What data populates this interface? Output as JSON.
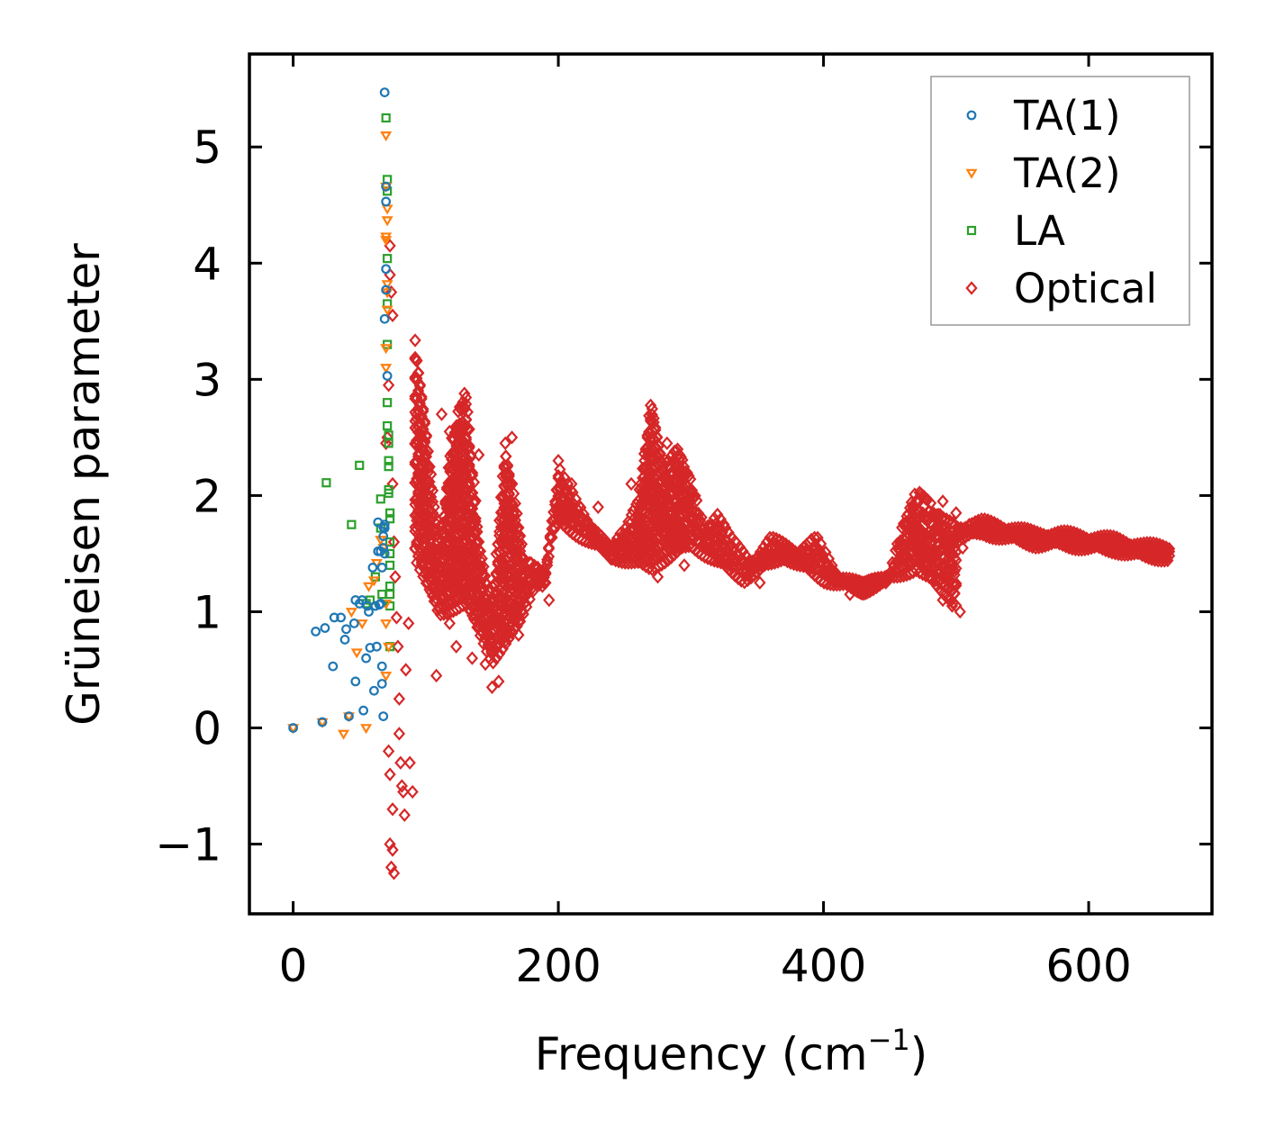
{
  "chart_data": {
    "type": "scatter",
    "xlabel": "Frequency (cm",
    "xlabel_sup": "−1",
    "xlabel_close": ")",
    "ylabel": "Grüneisen parameter",
    "xlim": [
      -33,
      693
    ],
    "ylim": [
      -1.6,
      5.8
    ],
    "xticks": [
      {
        "value": 0,
        "label": "0"
      },
      {
        "value": 200,
        "label": "200"
      },
      {
        "value": 400,
        "label": "400"
      },
      {
        "value": 600,
        "label": "600"
      }
    ],
    "yticks": [
      {
        "value": -1,
        "label": "−1"
      },
      {
        "value": 0,
        "label": "0"
      },
      {
        "value": 1,
        "label": "1"
      },
      {
        "value": 2,
        "label": "2"
      },
      {
        "value": 3,
        "label": "3"
      },
      {
        "value": 4,
        "label": "4"
      },
      {
        "value": 5,
        "label": "5"
      }
    ],
    "legend_position": "top-right",
    "series": [
      {
        "name": "TA(1)",
        "marker": "circle",
        "color": "#1f77b4",
        "points": [
          [
            0,
            0
          ],
          [
            22,
            0.05
          ],
          [
            17,
            0.83
          ],
          [
            24,
            0.86
          ],
          [
            31,
            0.95
          ],
          [
            36,
            0.95
          ],
          [
            40,
            0.85
          ],
          [
            39,
            0.76
          ],
          [
            30,
            0.53
          ],
          [
            47,
            1.1
          ],
          [
            50,
            1.07
          ],
          [
            46,
            0.9
          ],
          [
            52,
            1.1
          ],
          [
            55,
            0.6
          ],
          [
            56,
            1.05
          ],
          [
            57,
            1.0
          ],
          [
            58,
            0.69
          ],
          [
            60,
            1.38
          ],
          [
            61,
            0.32
          ],
          [
            62,
            1.05
          ],
          [
            63,
            0.7
          ],
          [
            64,
            1.52
          ],
          [
            64,
            1.77
          ],
          [
            65,
            1.06
          ],
          [
            66,
            1.07
          ],
          [
            66,
            1.52
          ],
          [
            67,
            0.53
          ],
          [
            67,
            1.38
          ],
          [
            67,
            0.38
          ],
          [
            68,
            1.65
          ],
          [
            68,
            0.1
          ],
          [
            68,
            1.55
          ],
          [
            68,
            1.73
          ],
          [
            69,
            1.75
          ],
          [
            69,
            1.72
          ],
          [
            69,
            1.5
          ],
          [
            69,
            3.52
          ],
          [
            70,
            3.77
          ],
          [
            70,
            3.95
          ],
          [
            70,
            4.53
          ],
          [
            70,
            4.66
          ],
          [
            69,
            5.47
          ],
          [
            71,
            3.03
          ],
          [
            47,
            0.4
          ],
          [
            53,
            0.15
          ],
          [
            42,
            0.1
          ]
        ]
      },
      {
        "name": "TA(2)",
        "marker": "triangle",
        "color": "#ff7f0e",
        "points": [
          [
            0,
            0
          ],
          [
            22,
            0.05
          ],
          [
            38,
            -0.05
          ],
          [
            42,
            0.1
          ],
          [
            55,
            0
          ],
          [
            57,
            1.22
          ],
          [
            61,
            1.27
          ],
          [
            63,
            1.42
          ],
          [
            66,
            1.62
          ],
          [
            68,
            1.55
          ],
          [
            70,
            1.07
          ],
          [
            70,
            0.45
          ],
          [
            70,
            0.9
          ],
          [
            72,
            0.7
          ],
          [
            70,
            3.1
          ],
          [
            70,
            3.27
          ],
          [
            71,
            3.6
          ],
          [
            71,
            3.75
          ],
          [
            71,
            3.82
          ],
          [
            70,
            4.2
          ],
          [
            70,
            4.23
          ],
          [
            71,
            4.37
          ],
          [
            71,
            4.47
          ],
          [
            70,
            4.66
          ],
          [
            70,
            5.1
          ],
          [
            48,
            0.65
          ],
          [
            52,
            0.9
          ],
          [
            44,
            1.0
          ]
        ]
      },
      {
        "name": "LA",
        "marker": "square",
        "color": "#2ca02c",
        "points": [
          [
            25,
            2.11
          ],
          [
            44,
            1.75
          ],
          [
            50,
            2.26
          ],
          [
            55,
            1.07
          ],
          [
            58,
            1.1
          ],
          [
            62,
            1.3
          ],
          [
            66,
            1.72
          ],
          [
            66,
            1.97
          ],
          [
            67,
            1.15
          ],
          [
            70,
            5.25
          ],
          [
            71,
            4.72
          ],
          [
            71,
            4.62
          ],
          [
            71,
            4.04
          ],
          [
            71,
            3.65
          ],
          [
            71,
            3.3
          ],
          [
            71,
            2.8
          ],
          [
            71,
            2.6
          ],
          [
            72,
            2.52
          ],
          [
            72,
            2.45
          ],
          [
            72,
            2.3
          ],
          [
            72,
            2.25
          ],
          [
            72,
            2.05
          ],
          [
            72,
            2.02
          ],
          [
            73,
            1.85
          ],
          [
            73,
            1.8
          ],
          [
            73,
            1.6
          ],
          [
            73,
            1.5
          ],
          [
            73,
            1.4
          ],
          [
            73,
            1.22
          ],
          [
            73,
            1.15
          ],
          [
            73,
            1.05
          ],
          [
            73,
            0.7
          ]
        ]
      },
      {
        "name": "Optical",
        "marker": "diamond",
        "color": "#d62728",
        "trace": [
          [
            92,
            3.3
          ],
          [
            100,
            2.6
          ],
          [
            110,
            1.5
          ],
          [
            120,
            2.5
          ],
          [
            130,
            2.9
          ],
          [
            140,
            1.6
          ],
          [
            150,
            1.0
          ],
          [
            160,
            2.4
          ],
          [
            175,
            1.4
          ],
          [
            190,
            1.3
          ],
          [
            200,
            2.2
          ],
          [
            220,
            1.8
          ],
          [
            240,
            1.5
          ],
          [
            260,
            1.9
          ],
          [
            270,
            2.8
          ],
          [
            280,
            2.2
          ],
          [
            290,
            2.4
          ],
          [
            300,
            2.1
          ],
          [
            310,
            1.7
          ],
          [
            320,
            1.8
          ],
          [
            330,
            1.6
          ],
          [
            345,
            1.4
          ],
          [
            360,
            1.6
          ],
          [
            380,
            1.5
          ],
          [
            395,
            1.6
          ],
          [
            410,
            1.3
          ],
          [
            430,
            1.2
          ],
          [
            450,
            1.3
          ],
          [
            462,
            1.8
          ],
          [
            470,
            2.0
          ],
          [
            480,
            1.9
          ],
          [
            490,
            1.8
          ],
          [
            500,
            1.7
          ],
          [
            520,
            1.75
          ],
          [
            540,
            1.7
          ],
          [
            560,
            1.65
          ],
          [
            580,
            1.65
          ],
          [
            600,
            1.62
          ],
          [
            620,
            1.6
          ],
          [
            640,
            1.55
          ],
          [
            662,
            1.53
          ]
        ],
        "band": [
          [
            92,
            1.5
          ],
          [
            110,
            1.0
          ],
          [
            130,
            1.1
          ],
          [
            150,
            0.6
          ],
          [
            170,
            0.9
          ],
          [
            200,
            1.8
          ],
          [
            240,
            1.5
          ],
          [
            270,
            1.4
          ],
          [
            300,
            1.6
          ],
          [
            340,
            1.3
          ],
          [
            370,
            1.5
          ],
          [
            400,
            1.3
          ],
          [
            430,
            1.2
          ],
          [
            470,
            1.4
          ],
          [
            500,
            1.1
          ]
        ],
        "points": [
          [
            70,
            2.45
          ],
          [
            71,
            2.5
          ],
          [
            72,
            2.95
          ],
          [
            73,
            4.15
          ],
          [
            73,
            3.9
          ],
          [
            74,
            3.75
          ],
          [
            75,
            3.55
          ],
          [
            75,
            2.1
          ],
          [
            76,
            1.6
          ],
          [
            77,
            1.3
          ],
          [
            78,
            0.95
          ],
          [
            79,
            0.7
          ],
          [
            80,
            0.25
          ],
          [
            80,
            -0.05
          ],
          [
            81,
            -0.3
          ],
          [
            82,
            -0.5
          ],
          [
            83,
            -0.55
          ],
          [
            84,
            -0.75
          ],
          [
            73,
            -1.0
          ],
          [
            75,
            -1.05
          ],
          [
            74,
            -1.2
          ],
          [
            76,
            -1.25
          ],
          [
            72,
            -0.2
          ],
          [
            73,
            -0.4
          ],
          [
            75,
            -0.7
          ],
          [
            88,
            -0.3
          ],
          [
            90,
            -0.55
          ],
          [
            85,
            0.5
          ],
          [
            87,
            0.9
          ],
          [
            108,
            0.45
          ],
          [
            118,
            0.9
          ],
          [
            123,
            0.7
          ],
          [
            135,
            0.6
          ],
          [
            145,
            0.55
          ],
          [
            150,
            0.35
          ],
          [
            155,
            0.4
          ],
          [
            160,
            0.75
          ],
          [
            170,
            0.8
          ],
          [
            180,
            1.2
          ],
          [
            186,
            1.25
          ],
          [
            193,
            1.1
          ],
          [
            200,
            2.3
          ],
          [
            210,
            2.1
          ],
          [
            225,
            1.7
          ],
          [
            245,
            1.45
          ],
          [
            265,
            1.5
          ],
          [
            275,
            1.3
          ],
          [
            283,
            1.45
          ],
          [
            295,
            1.4
          ],
          [
            305,
            1.6
          ],
          [
            335,
            1.5
          ],
          [
            346,
            1.3
          ],
          [
            352,
            1.25
          ],
          [
            372,
            1.55
          ],
          [
            392,
            1.55
          ],
          [
            407,
            1.35
          ],
          [
            420,
            1.15
          ],
          [
            432,
            1.2
          ],
          [
            447,
            1.25
          ],
          [
            462,
            1.55
          ],
          [
            470,
            1.4
          ],
          [
            480,
            1.3
          ],
          [
            490,
            1.1
          ],
          [
            497,
            1.05
          ],
          [
            503,
            1.0
          ],
          [
            490,
            1.95
          ],
          [
            500,
            1.85
          ],
          [
            505,
            1.55
          ],
          [
            510,
            1.75
          ],
          [
            496,
            1.4
          ],
          [
            480,
            1.55
          ],
          [
            112,
            2.7
          ],
          [
            118,
            2.55
          ],
          [
            140,
            2.35
          ],
          [
            165,
            2.5
          ],
          [
            160,
            2.45
          ],
          [
            230,
            1.9
          ],
          [
            255,
            2.1
          ],
          [
            265,
            2.3
          ],
          [
            282,
            2.45
          ]
        ]
      }
    ]
  }
}
